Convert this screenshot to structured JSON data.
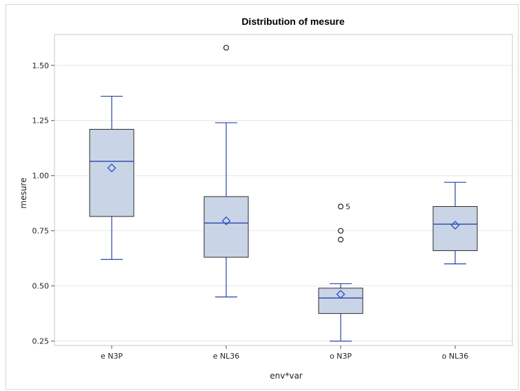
{
  "chart_data": {
    "type": "box",
    "title": "Distribution of mesure",
    "xlabel": "env*var",
    "ylabel": "mesure",
    "ylim": [
      0.23,
      1.64
    ],
    "yticks": [
      0.25,
      0.5,
      0.75,
      1.0,
      1.25,
      1.5
    ],
    "ytick_labels": [
      "0.25",
      "0.50",
      "0.75",
      "1.00",
      "1.25",
      "1.50"
    ],
    "grid": "horizontal",
    "colors": {
      "box_fill": "#c9d5e6",
      "box_edge": "#2a2a2a",
      "whisker": "#2743a8",
      "median": "#2743a8",
      "mean_marker": "#2f56c9",
      "outlier": "#222222",
      "grid": "#e6e6e6"
    },
    "categories": [
      "e N3P",
      "e NL36",
      "o N3P",
      "o NL36"
    ],
    "boxes": [
      {
        "category": "e N3P",
        "whisker_low": 0.62,
        "q1": 0.815,
        "median": 1.065,
        "q3": 1.21,
        "whisker_high": 1.36,
        "mean": 1.035,
        "outliers": []
      },
      {
        "category": "e NL36",
        "whisker_low": 0.45,
        "q1": 0.63,
        "median": 0.785,
        "q3": 0.905,
        "whisker_high": 1.24,
        "mean": 0.795,
        "outliers": [
          1.58
        ]
      },
      {
        "category": "o N3P",
        "whisker_low": 0.25,
        "q1": 0.375,
        "median": 0.445,
        "q3": 0.49,
        "whisker_high": 0.51,
        "mean": 0.462,
        "outliers": [
          0.71,
          0.75,
          0.86
        ]
      },
      {
        "category": "o NL36",
        "whisker_low": 0.6,
        "q1": 0.66,
        "median": 0.78,
        "q3": 0.86,
        "whisker_high": 0.97,
        "mean": 0.775,
        "outliers": []
      }
    ],
    "annotations": [
      {
        "category": "o N3P",
        "y": 0.86,
        "text": "5"
      }
    ]
  }
}
